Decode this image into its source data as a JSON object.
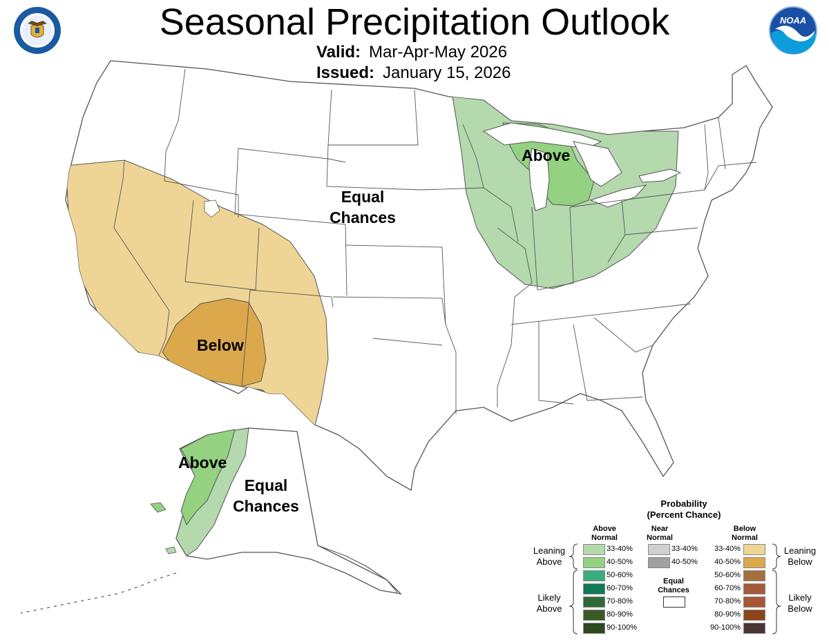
{
  "header": {
    "title": "Seasonal Precipitation Outlook",
    "valid_label": "Valid:",
    "valid_value": "Mar-Apr-May 2026",
    "issued_label": "Issued:",
    "issued_value": "January 15, 2026",
    "logo_left": "DEPARTMENT OF COMMERCE · UNITED STATES OF AMERICA",
    "logo_right": "NOAA"
  },
  "map_labels": {
    "equal_chances_conus": "Equal Chances",
    "above_east": "Above",
    "below_sw": "Below",
    "above_ak": "Above",
    "equal_chances_ak": "Equal Chances"
  },
  "legend": {
    "title_line1": "Probability",
    "title_line2": "(Percent Chance)",
    "above_header_1": "Above",
    "above_header_2": "Normal",
    "near_header_1": "Near",
    "near_header_2": "Normal",
    "below_header_1": "Below",
    "below_header_2": "Normal",
    "leaning_above_1": "Leaning",
    "leaning_above_2": "Above",
    "likely_above_1": "Likely",
    "likely_above_2": "Above",
    "leaning_below_1": "Leaning",
    "leaning_below_2": "Below",
    "likely_below_1": "Likely",
    "likely_below_2": "Below",
    "equal_1": "Equal",
    "equal_2": "Chances",
    "above": [
      {
        "label": "33-40%",
        "color": "#b3d9ad"
      },
      {
        "label": "40-50%",
        "color": "#94d181"
      },
      {
        "label": "50-60%",
        "color": "#3aad7c"
      },
      {
        "label": "60-70%",
        "color": "#0f7a55"
      },
      {
        "label": "70-80%",
        "color": "#2f6a35"
      },
      {
        "label": "80-90%",
        "color": "#3a5a25"
      },
      {
        "label": "90-100%",
        "color": "#2c4a1c"
      }
    ],
    "near": [
      {
        "label": "33-40%",
        "color": "#d0d0d0"
      },
      {
        "label": "40-50%",
        "color": "#a0a0a0"
      }
    ],
    "below": [
      {
        "label": "33-40%",
        "color": "#efd595"
      },
      {
        "label": "40-50%",
        "color": "#dba84c"
      },
      {
        "label": "50-60%",
        "color": "#a5703d"
      },
      {
        "label": "60-70%",
        "color": "#a55a3a"
      },
      {
        "label": "70-80%",
        "color": "#a85535"
      },
      {
        "label": "80-90%",
        "color": "#8a4518"
      },
      {
        "label": "90-100%",
        "color": "#4a3535"
      }
    ]
  },
  "colors": {
    "leaning_above": "#b3d9ad",
    "above_40_50": "#94d181",
    "leaning_below": "#efd595",
    "below_40_50": "#dba84c",
    "border": "#555555",
    "water": "#ffffff"
  }
}
